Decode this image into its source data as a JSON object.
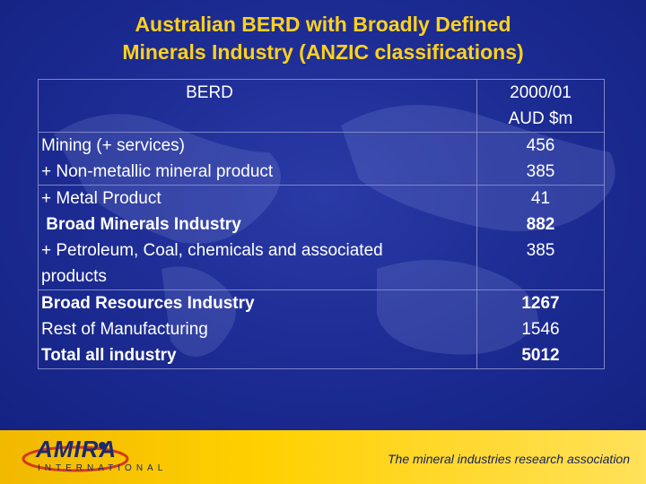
{
  "title_line1": "Australian BERD with Broadly Defined",
  "title_line2": "Minerals Industry (ANZIC classifications)",
  "table": {
    "header_label": "BERD",
    "header_value_line1": "2000/01",
    "header_value_line2": "AUD $m",
    "rows": [
      {
        "label_lines": [
          "Mining (+ services)",
          "+ Non-metallic mineral product"
        ],
        "values": [
          "456",
          "385"
        ]
      },
      {
        "label_lines": [
          "+ Metal Product",
          " Broad Minerals Industry",
          "+ Petroleum, Coal, chemicals and associated",
          "products"
        ],
        "values": [
          "41",
          "882",
          "385"
        ]
      },
      {
        "label_lines": [
          "Broad Resources Industry",
          "Rest of Manufacturing",
          "Total all industry"
        ],
        "values": [
          "1267",
          "1546",
          "5012"
        ]
      }
    ]
  },
  "footer": {
    "logo_text": "AMIRA",
    "logo_sub": "INTERNATIONAL",
    "tagline": "The mineral industries research association"
  },
  "colors": {
    "title": "#ffd21a",
    "background": "#1c2b92",
    "footer": "#ffd000"
  }
}
